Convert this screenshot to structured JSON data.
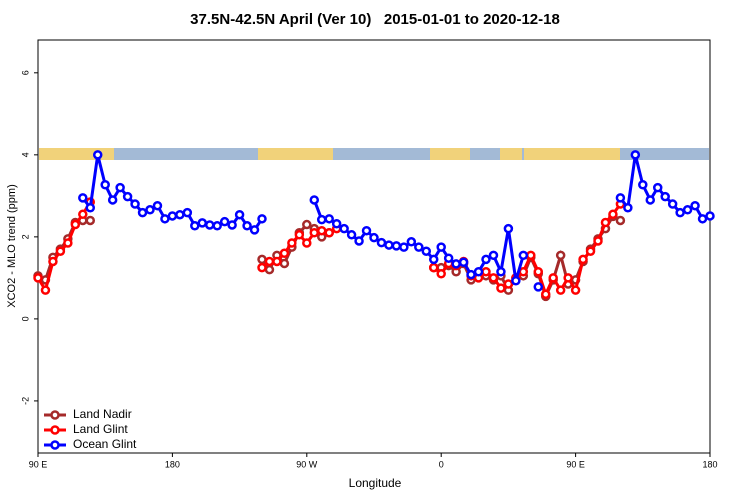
{
  "chart_data": {
    "type": "line",
    "title": "37.5N-42.5N April (Ver 10)   2015-01-01 to 2020-12-18",
    "xlabel": "Longitude",
    "ylabel": "XCO2 - MLO trend (ppm)",
    "xlim": [
      90,
      540
    ],
    "ylim": [
      -3.27,
      6.8
    ],
    "xticks": [
      {
        "value": 90,
        "label": "90 E"
      },
      180,
      {
        "value": 270,
        "label": "90 W"
      },
      {
        "value": 360,
        "label": "0"
      },
      {
        "value": 450,
        "label": "90 E"
      },
      {
        "value": 540,
        "label": "180"
      }
    ],
    "yticks": [
      -2,
      0,
      2,
      4,
      6
    ],
    "legend": "bottom-left",
    "series": [
      {
        "name": "Land Nadir",
        "color": "#a52a2a",
        "x": [
          90,
          95,
          100,
          105,
          110,
          115,
          120,
          125,
          130,
          240,
          245,
          250,
          255,
          260,
          265,
          270,
          275,
          280,
          285,
          290,
          355,
          360,
          365,
          370,
          375,
          380,
          385,
          390,
          395,
          400,
          405,
          410,
          415,
          420,
          425,
          430,
          435,
          440,
          445,
          450,
          455,
          460,
          465,
          470,
          475,
          480
        ],
        "values": [
          1.05,
          0.95,
          1.5,
          1.7,
          1.95,
          2.35,
          2.4,
          2.4,
          null,
          1.45,
          1.2,
          1.55,
          1.35,
          1.75,
          2.1,
          2.3,
          2.2,
          2.0,
          2.1,
          null,
          1.25,
          1.25,
          1.3,
          1.15,
          1.35,
          0.95,
          1.1,
          1.05,
          0.95,
          1.05,
          0.7,
          1.0,
          1.05,
          1.5,
          1.1,
          0.55,
          0.95,
          1.55,
          0.85,
          0.95,
          1.4,
          1.7,
          1.95,
          2.2,
          2.5,
          2.4
        ]
      },
      {
        "name": "Land Glint",
        "color": "#ff0000",
        "x": [
          90,
          95,
          100,
          105,
          110,
          115,
          120,
          125,
          130,
          240,
          245,
          250,
          255,
          260,
          265,
          270,
          275,
          280,
          285,
          290,
          295,
          355,
          360,
          365,
          370,
          375,
          380,
          385,
          390,
          395,
          400,
          405,
          410,
          415,
          420,
          425,
          430,
          435,
          440,
          445,
          450,
          455,
          460,
          465,
          470,
          475,
          480
        ],
        "values": [
          1.0,
          0.7,
          1.4,
          1.65,
          1.85,
          2.3,
          2.55,
          2.85,
          null,
          1.25,
          1.4,
          1.4,
          1.6,
          1.85,
          2.05,
          1.85,
          2.1,
          2.15,
          2.1,
          2.2,
          null,
          1.25,
          1.1,
          1.35,
          1.3,
          1.4,
          1.05,
          1.0,
          1.15,
          1.0,
          0.75,
          0.85,
          1.0,
          1.15,
          1.55,
          1.15,
          0.6,
          1.0,
          0.7,
          1.0,
          0.7,
          1.45,
          1.65,
          1.9,
          2.35,
          2.55,
          2.8
        ]
      },
      {
        "name": "Ocean Glint",
        "color": "#0000ff",
        "x": [
          120,
          125,
          130,
          135,
          140,
          145,
          150,
          155,
          160,
          165,
          170,
          175,
          180,
          185,
          190,
          195,
          200,
          205,
          210,
          215,
          220,
          225,
          230,
          235,
          240,
          245,
          275,
          280,
          285,
          290,
          295,
          300,
          305,
          310,
          315,
          320,
          325,
          330,
          335,
          340,
          345,
          350,
          355,
          360,
          365,
          370,
          375,
          380,
          385,
          390,
          395,
          400,
          405,
          410,
          415,
          420,
          425,
          430,
          480,
          485,
          490,
          495,
          500,
          505,
          510,
          515,
          520,
          525,
          530,
          535,
          540
        ],
        "values": [
          2.95,
          2.71,
          4.0,
          3.27,
          2.9,
          3.2,
          2.98,
          2.8,
          2.59,
          2.66,
          2.76,
          2.44,
          2.51,
          2.54,
          2.59,
          2.27,
          2.34,
          2.29,
          2.27,
          2.37,
          2.29,
          2.54,
          2.27,
          2.17,
          2.44,
          null,
          2.9,
          2.42,
          2.44,
          2.32,
          2.2,
          2.05,
          1.9,
          2.15,
          1.98,
          1.86,
          1.8,
          1.78,
          1.75,
          1.88,
          1.75,
          1.65,
          1.45,
          1.75,
          1.48,
          1.34,
          1.38,
          1.08,
          1.15,
          1.45,
          1.55,
          1.15,
          2.2,
          0.93,
          1.55,
          null,
          0.78,
          null,
          2.95,
          2.71,
          4.0,
          3.27,
          2.9,
          3.2,
          2.98,
          2.8,
          2.59,
          2.66,
          2.76,
          2.44,
          2.51
        ]
      }
    ]
  }
}
